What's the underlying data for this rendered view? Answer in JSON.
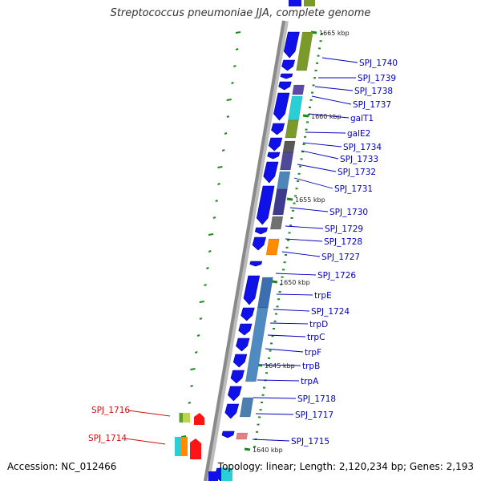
{
  "title": "Streptococcus pneumoniae JJA, complete genome",
  "footer": {
    "accession_label": "Accession:",
    "accession": "NC_012466",
    "topology_label": "Topology:",
    "topology": "linear",
    "length_label": "Length:",
    "length": "2,120,234 bp",
    "genes_label": "Genes:",
    "genes": "2,193"
  },
  "colors": {
    "cds": "#1010e8",
    "label_primary": "#0000c0",
    "label_highlight": "#d01010",
    "tick": "#1e8a1e",
    "backbone": "#8a8a8a"
  },
  "chart_data": {
    "type": "genome-map",
    "scale_labels": [
      "1665 kbp",
      "1660 kbp",
      "1655 kbp",
      "1650 kbp",
      "1645 kbp",
      "1640 kbp"
    ],
    "gene_labels": [
      "SPJ_1740",
      "SPJ_1739",
      "SPJ_1738",
      "SPJ_1737",
      "galT1",
      "galE2",
      "SPJ_1734",
      "SPJ_1733",
      "SPJ_1732",
      "SPJ_1731",
      "SPJ_1730",
      "SPJ_1729",
      "SPJ_1728",
      "SPJ_1727",
      "SPJ_1726",
      "trpE",
      "SPJ_1724",
      "trpD",
      "trpC",
      "trpF",
      "trpB",
      "trpA",
      "SPJ_1718",
      "SPJ_1717",
      "SPJ_1715"
    ],
    "highlight_labels": [
      "SPJ_1716",
      "SPJ_1714"
    ]
  }
}
